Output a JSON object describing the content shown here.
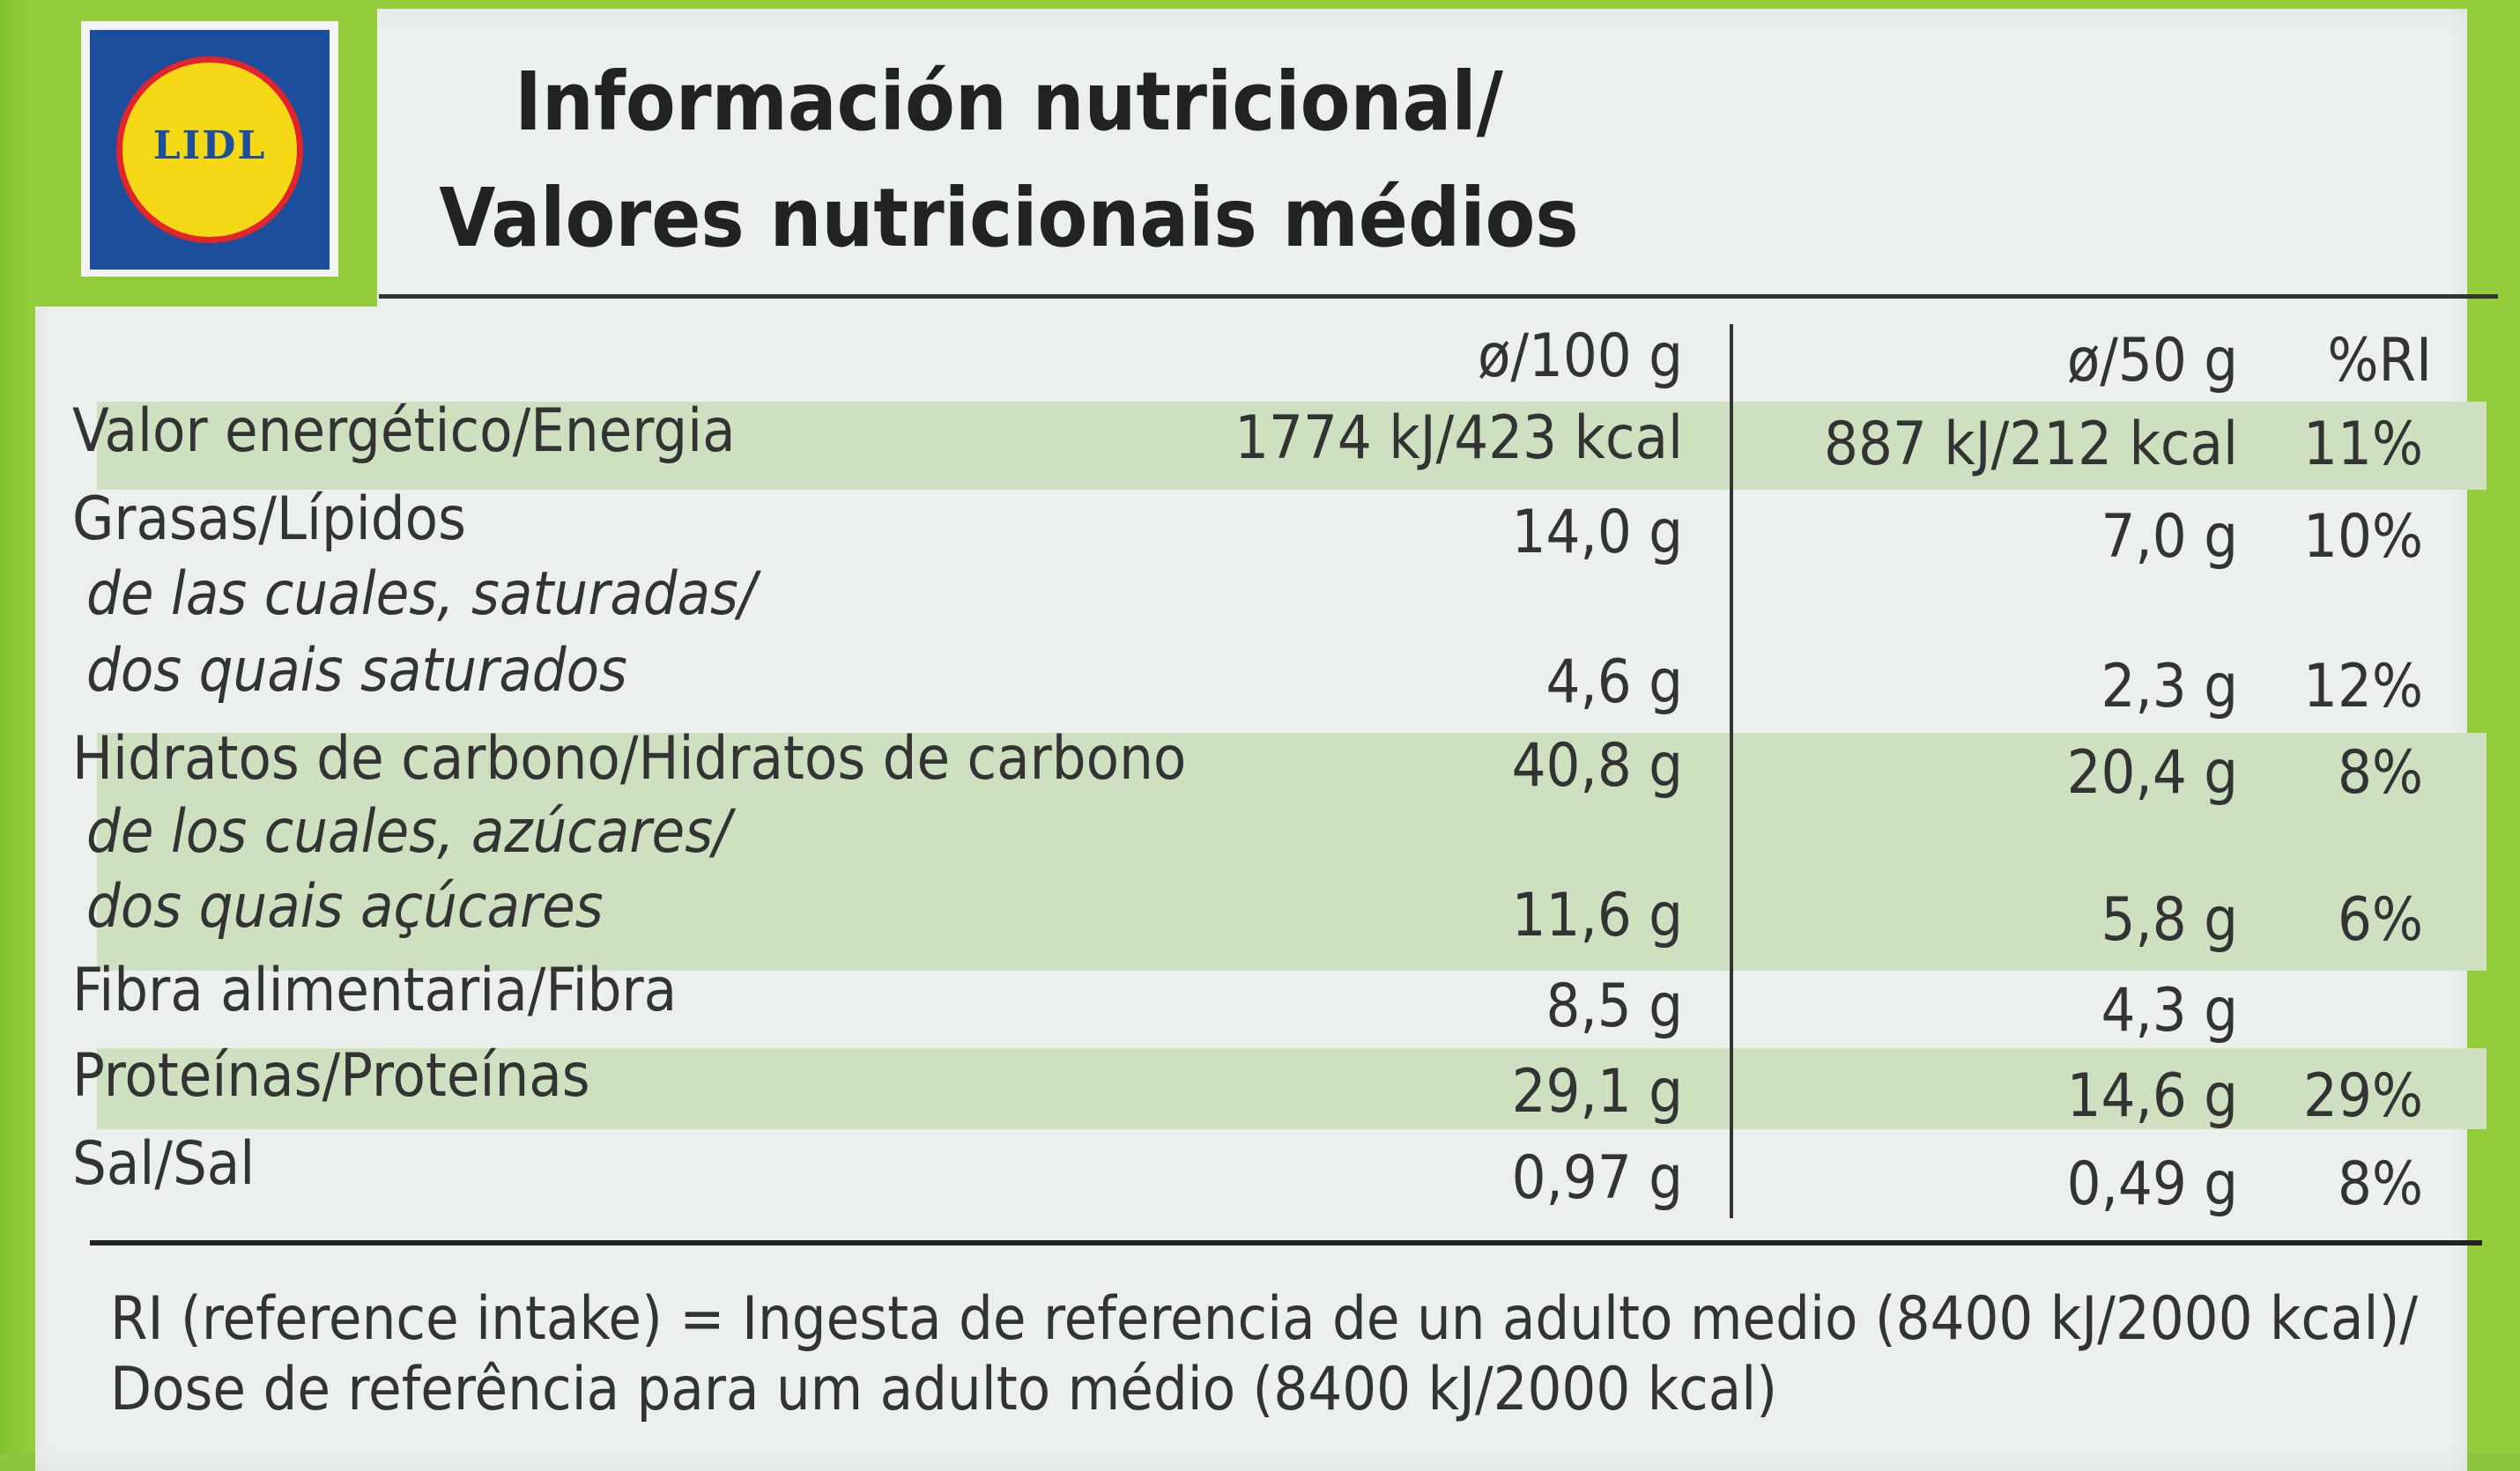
{
  "brand": "LIDL",
  "title": {
    "line1": "Información nutricional/",
    "line2": "Valores nutricionais médios"
  },
  "headers": {
    "per100": "ø/100 g",
    "per50": "ø/50 g",
    "ri": "%RI"
  },
  "rows": [
    {
      "label": "Valor energético/Energia",
      "per100": "1774 kJ/423 kcal",
      "per50": "887 kJ/212 kcal",
      "ri": "11%"
    },
    {
      "label": "Grasas/Lípidos",
      "per100": "14,0 g",
      "per50": "7,0 g",
      "ri": "10%"
    },
    {
      "label": "de las cuales, saturadas/",
      "label2": "dos quais saturados",
      "per100": "4,6 g",
      "per50": "2,3 g",
      "ri": "12%"
    },
    {
      "label": "Hidratos de carbono/Hidratos de carbono",
      "per100": "40,8 g",
      "per50": "20,4 g",
      "ri": "8%"
    },
    {
      "label": "de los cuales, azúcares/",
      "label2": "dos quais açúcares",
      "per100": "11,6 g",
      "per50": "5,8 g",
      "ri": "6%"
    },
    {
      "label": "Fibra alimentaria/Fibra",
      "per100": "8,5 g",
      "per50": "4,3 g",
      "ri": ""
    },
    {
      "label": "Proteínas/Proteínas",
      "per100": "29,1 g",
      "per50": "14,6 g",
      "ri": "29%"
    },
    {
      "label": "Sal/Sal",
      "per100": "0,97 g",
      "per50": "0,49 g",
      "ri": "8%"
    }
  ],
  "footer": {
    "line1": "RI (reference intake) = Ingesta de referencia de un adulto medio (8400 kJ/2000 kcal)/",
    "line2": "Dose de referência para um adulto médio (8400 kJ/2000 kcal)"
  },
  "colors": {
    "packaging_green": "#8cc63f",
    "stripe_green": "#cfe0c0",
    "lidl_blue": "#1c4e9c",
    "lidl_yellow": "#f6d916",
    "lidl_red": "#e3242b"
  }
}
